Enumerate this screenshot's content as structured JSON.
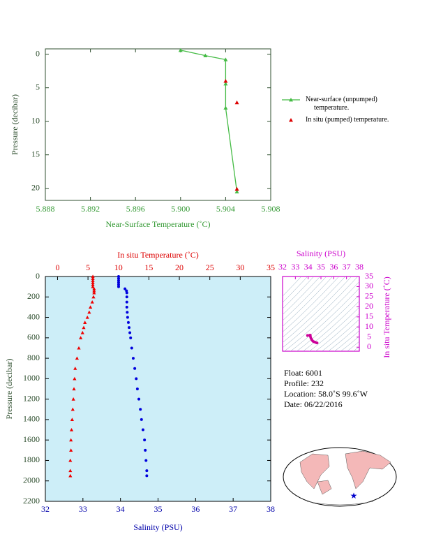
{
  "chart_data": [
    {
      "type": "line",
      "xlabel": "Near-Surface Temperature (˚C)",
      "ylabel": "Pressure (decibar)",
      "xlim": [
        5.888,
        5.908
      ],
      "xticks": [
        5.888,
        5.892,
        5.896,
        {
          "value": 5.9,
          "label": "5.900"
        },
        5.904,
        5.908
      ],
      "ylim": [
        -0.8,
        21.8
      ],
      "yticks": [
        0,
        5,
        10,
        15,
        20
      ],
      "y_inverted": true,
      "axis_color": "#339933",
      "series": [
        {
          "name": "Near-surface (unpumped) temperature.",
          "color": "#44bb44",
          "marker": "triangle",
          "line": true,
          "x": [
            5.9,
            5.9022,
            5.904,
            5.904,
            5.904,
            5.905
          ],
          "values": [
            -0.6,
            0.2,
            0.8,
            4.4,
            8.0,
            20.5
          ]
        },
        {
          "name": "In situ (pumped) temperature.",
          "color": "#dd0000",
          "marker": "triangle",
          "line": false,
          "x": [
            5.904,
            5.905,
            5.905
          ],
          "values": [
            4.0,
            7.2,
            20.1
          ]
        }
      ]
    },
    {
      "type": "profile",
      "ylabel": "Pressure (decibar)",
      "ylim": [
        0,
        2200
      ],
      "yticks": [
        0,
        200,
        400,
        600,
        800,
        1000,
        1200,
        1400,
        1600,
        1800,
        2000,
        2200
      ],
      "y_inverted": true,
      "background": "#cdeef8",
      "y": [
        0,
        20,
        40,
        60,
        80,
        100,
        120,
        140,
        160,
        200,
        250,
        300,
        350,
        400,
        450,
        500,
        550,
        600,
        700,
        800,
        900,
        1000,
        1100,
        1200,
        1300,
        1400,
        1500,
        1600,
        1700,
        1800,
        1900,
        1950
      ],
      "top_axis": {
        "label": "In situ Temperature (˚C)",
        "lim": [
          -2,
          35
        ],
        "ticks": [
          0,
          5,
          10,
          15,
          20,
          25,
          30,
          35
        ],
        "color": "#dd0000"
      },
      "bottom_axis": {
        "label": "Salinity (PSU)",
        "lim": [
          32,
          38
        ],
        "ticks": [
          32,
          33,
          34,
          35,
          36,
          37,
          38
        ],
        "color": "#0000aa"
      },
      "series": [
        {
          "axis": "top",
          "color": "#ee0000",
          "marker": "triangle",
          "values": [
            5.8,
            5.8,
            5.8,
            5.8,
            5.8,
            5.8,
            6.0,
            6.0,
            6.0,
            5.9,
            5.7,
            5.4,
            5.2,
            4.9,
            4.5,
            4.3,
            4.1,
            3.8,
            3.5,
            3.2,
            2.9,
            2.8,
            2.7,
            2.6,
            2.5,
            2.4,
            2.3,
            2.2,
            2.2,
            2.1,
            2.1,
            2.1
          ]
        },
        {
          "axis": "bottom",
          "color": "#0000dd",
          "marker": "dot",
          "values": [
            33.95,
            33.95,
            33.95,
            33.95,
            33.95,
            33.95,
            34.12,
            34.16,
            34.17,
            34.17,
            34.17,
            34.17,
            34.18,
            34.19,
            34.21,
            34.23,
            34.25,
            34.27,
            34.3,
            34.34,
            34.38,
            34.42,
            34.45,
            34.49,
            34.53,
            34.56,
            34.6,
            34.64,
            34.66,
            34.68,
            34.7,
            34.7
          ]
        }
      ]
    },
    {
      "type": "ts",
      "xlabel": "Salinity (PSU)",
      "ylabel": "In situ Temperature (˚C)",
      "xlim": [
        32,
        38
      ],
      "xticks": [
        32,
        33,
        34,
        35,
        36,
        37,
        38
      ],
      "ylim": [
        -2,
        35
      ],
      "yticks": [
        0,
        5,
        10,
        15,
        20,
        25,
        30,
        35
      ],
      "color": "#cc0099",
      "axis_color": "#cc00cc"
    }
  ],
  "float_info": {
    "float": "Float:  6001",
    "profile": "Profile:  232",
    "location": "Location:  58.0˚S  99.6˚W",
    "date": "Date:  06/22/2016"
  }
}
